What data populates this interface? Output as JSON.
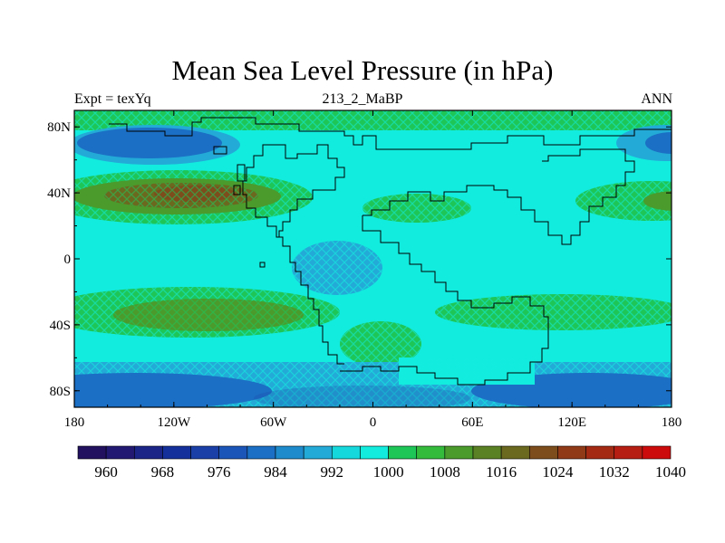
{
  "header": {
    "title": "Mean Sea Level Pressure (in hPa)",
    "left_label": "Expt = texYq",
    "center_label": "213_2_MaBP",
    "right_label": "ANN"
  },
  "axes": {
    "x_ticks": [
      {
        "value": -180,
        "label": "180"
      },
      {
        "value": -120,
        "label": "120W"
      },
      {
        "value": -60,
        "label": "60W"
      },
      {
        "value": 0,
        "label": "0"
      },
      {
        "value": 60,
        "label": "60E"
      },
      {
        "value": 120,
        "label": "120E"
      },
      {
        "value": 180,
        "label": "180"
      }
    ],
    "y_ticks": [
      {
        "value": 80,
        "label": "80N"
      },
      {
        "value": 40,
        "label": "40N"
      },
      {
        "value": 0,
        "label": "0"
      },
      {
        "value": -40,
        "label": "40S"
      },
      {
        "value": -80,
        "label": "80S"
      }
    ],
    "lon_range": [
      -180,
      180
    ],
    "lat_range": [
      -90,
      90
    ]
  },
  "colorbar": {
    "levels": [
      960,
      964,
      968,
      972,
      976,
      980,
      984,
      988,
      992,
      996,
      1000,
      1004,
      1008,
      1012,
      1016,
      1020,
      1024,
      1028,
      1032,
      1036,
      1040
    ],
    "labeled": [
      960,
      968,
      976,
      984,
      992,
      1000,
      1008,
      1016,
      1024,
      1032,
      1040
    ],
    "colors": [
      "#21115e",
      "#221a72",
      "#1b2487",
      "#14309a",
      "#1a40a8",
      "#1c55b8",
      "#1b6fc4",
      "#1e8ccc",
      "#23aad6",
      "#15d8dc",
      "#12ecdf",
      "#1ec658",
      "#35bb3c",
      "#4b9a2c",
      "#5b8125",
      "#6b6920",
      "#7e4d1c",
      "#913a17",
      "#a42a14",
      "#b61d13",
      "#cc0c0c"
    ]
  },
  "fields": {
    "background_color": "#12ecdf",
    "bands": [
      {
        "name": "arctic-high",
        "lat_range": [
          76,
          90
        ],
        "color": "#1ec658"
      },
      {
        "name": "north-pacific-low",
        "lat_range": [
          66,
          78
        ],
        "color": "#1b6fc4"
      },
      {
        "name": "north-subtropical-high",
        "lat_range": [
          22,
          46
        ],
        "color": "#1ec658"
      },
      {
        "name": "south-subtropical-high",
        "lat_range": [
          -48,
          -22
        ],
        "color": "#1ec658"
      },
      {
        "name": "southern-ocean-low",
        "lat_range": [
          -90,
          -58
        ],
        "color": "#1b6fc4"
      }
    ]
  }
}
